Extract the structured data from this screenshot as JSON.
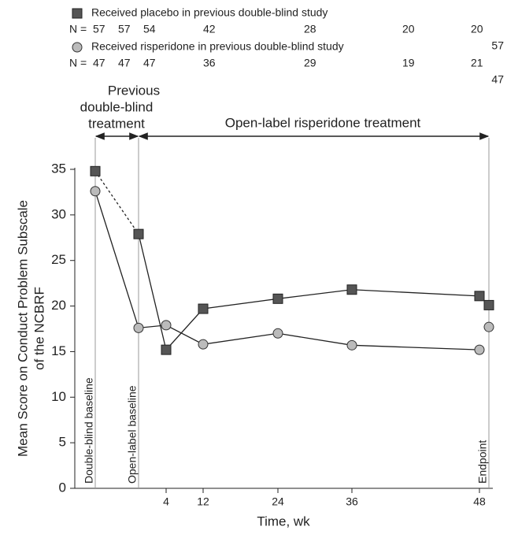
{
  "chart_data": {
    "type": "line",
    "categories": [
      "Double-blind baseline",
      "Open-label baseline",
      "4",
      "12",
      "24",
      "36",
      "48",
      "Endpoint"
    ],
    "series": [
      {
        "name": "Received placebo in previous double-blind study",
        "color": "#555555",
        "marker": "square",
        "values": [
          34.8,
          27.9,
          15.2,
          19.7,
          20.8,
          21.8,
          21.1,
          20.1
        ]
      },
      {
        "name": "Received risperidone in previous double-blind study",
        "color": "#bbbbbb",
        "marker": "circle",
        "values": [
          32.6,
          17.6,
          17.9,
          15.8,
          17.0,
          15.7,
          15.2,
          17.7
        ]
      }
    ],
    "n_counts": [
      {
        "label": "N =",
        "values": [
          57,
          57,
          54,
          42,
          28,
          20,
          20,
          57
        ]
      },
      {
        "label": "N =",
        "values": [
          47,
          47,
          47,
          36,
          29,
          19,
          21,
          47
        ]
      }
    ],
    "annotations": {
      "previous": [
        "Previous",
        "double-blind",
        "treatment"
      ],
      "open_label": "Open-label risperidone treatment"
    },
    "y_label": [
      "Mean Score on Conduct Problem Subscale",
      "of the NCBRF"
    ],
    "x_label": "Time, wk",
    "ylim": [
      0,
      35
    ],
    "yticks": [
      0,
      5,
      10,
      15,
      20,
      25,
      30,
      35
    ]
  }
}
